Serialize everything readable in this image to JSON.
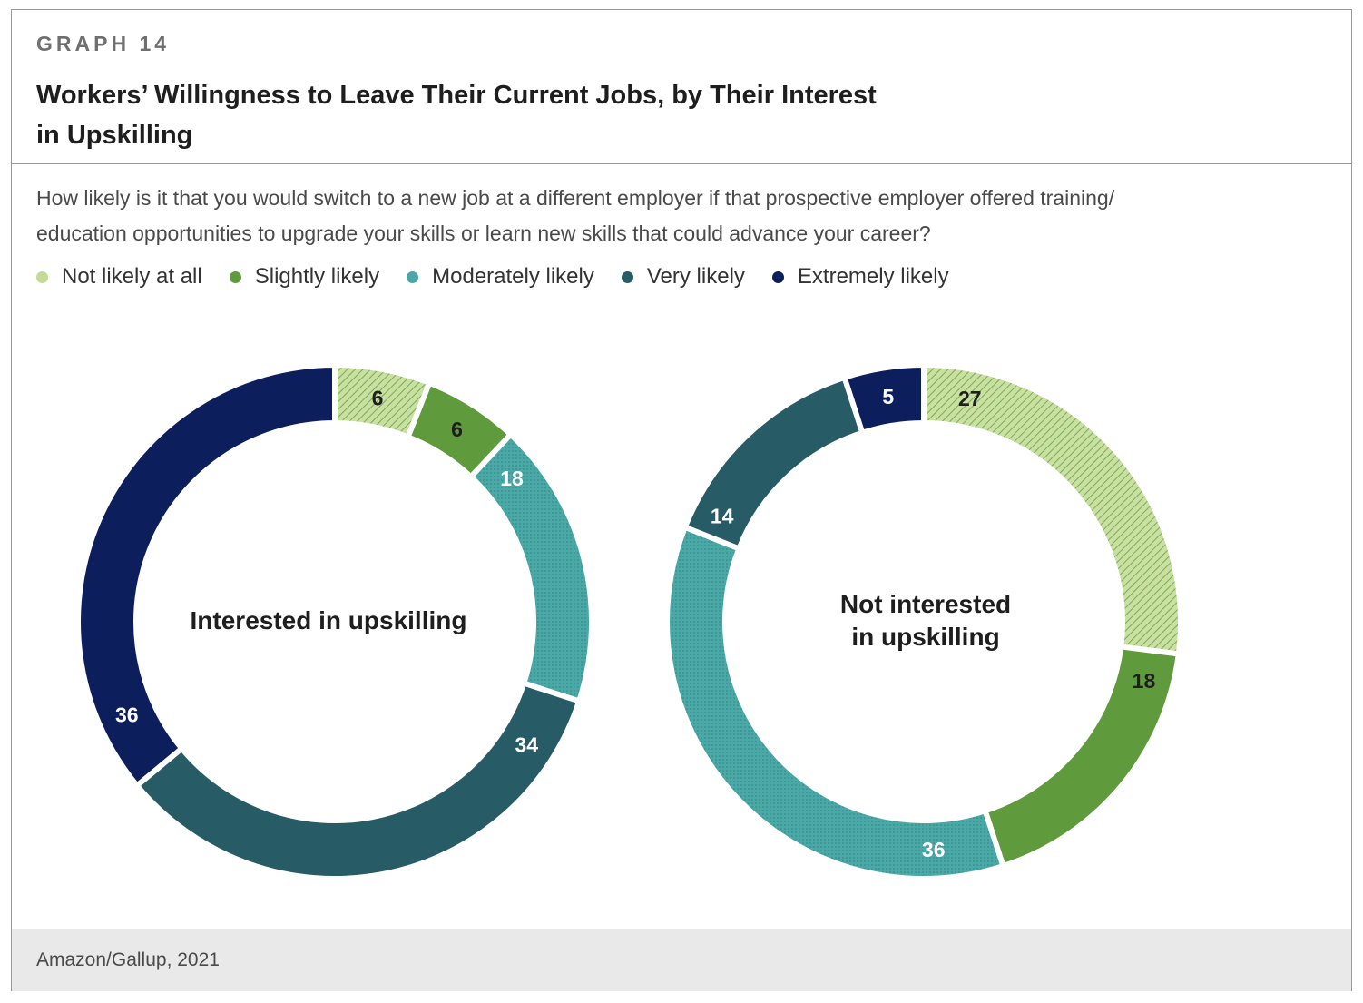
{
  "header": {
    "graph_label": "GRAPH 14",
    "title_line1": "Workers’ Willingness to Leave Their Current Jobs, by Their Interest",
    "title_line2": "in Upskilling",
    "question_line1": "How likely is it that you would switch to a new job at a different employer if that prospective employer offered training/",
    "question_line2": "education opportunities to upgrade your skills or learn new skills that could advance your career?"
  },
  "legend": [
    {
      "label": "Not likely at all",
      "color": "#c3dc95"
    },
    {
      "label": "Slightly likely",
      "color": "#5f9a3c"
    },
    {
      "label": "Moderately likely",
      "color": "#4aa9a6"
    },
    {
      "label": "Very likely",
      "color": "#275c66"
    },
    {
      "label": "Extremely likely",
      "color": "#0c1f5c"
    }
  ],
  "chart_data": [
    {
      "type": "pie",
      "subtype": "donut",
      "center_label": [
        "Interested in upskilling"
      ],
      "categories": [
        "Not likely at all",
        "Slightly likely",
        "Moderately likely",
        "Very likely",
        "Extremely likely"
      ],
      "values": [
        6,
        6,
        18,
        34,
        36
      ],
      "colors": [
        "#c3dc95",
        "#5f9a3c",
        "#4aa9a6",
        "#275c66",
        "#0c1f5c"
      ],
      "patterns": [
        "hatch",
        "solid",
        "dots",
        "solid",
        "solid"
      ],
      "label_colors": [
        "#1e1e1e",
        "#1e1e1e",
        "#ffffff",
        "#ffffff",
        "#ffffff"
      ]
    },
    {
      "type": "pie",
      "subtype": "donut",
      "center_label": [
        "Not interested",
        "in upskilling"
      ],
      "categories": [
        "Not likely at all",
        "Slightly likely",
        "Moderately likely",
        "Very likely",
        "Extremely likely"
      ],
      "values": [
        27,
        18,
        36,
        14,
        5
      ],
      "colors": [
        "#c3dc95",
        "#5f9a3c",
        "#4aa9a6",
        "#275c66",
        "#0c1f5c"
      ],
      "patterns": [
        "hatch",
        "solid",
        "dots",
        "solid",
        "solid"
      ],
      "label_colors": [
        "#1e1e1e",
        "#1e1e1e",
        "#ffffff",
        "#ffffff",
        "#ffffff"
      ]
    }
  ],
  "footer": {
    "source": "Amazon/Gallup, 2021"
  }
}
